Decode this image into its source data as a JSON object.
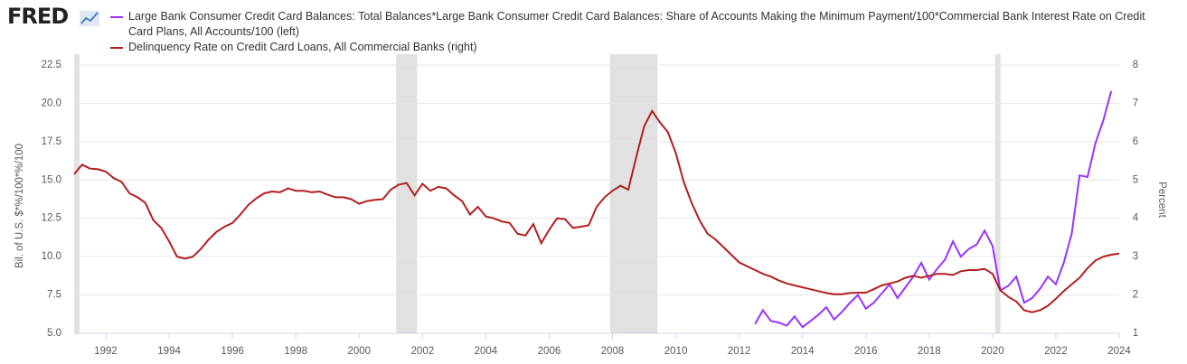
{
  "chart_data": {
    "type": "line",
    "logo": "FRED",
    "ylabel": "Bil. of U.S. $*%/100*%/100",
    "y2label": "Percent",
    "xlim": [
      1991,
      2024
    ],
    "xticks": [
      1992,
      1994,
      1996,
      1998,
      2000,
      2002,
      2004,
      2006,
      2008,
      2010,
      2012,
      2014,
      2016,
      2018,
      2020,
      2022,
      2024
    ],
    "ylim": [
      5,
      22.5
    ],
    "yticks": [
      {
        "value": 5,
        "label": "5.0"
      },
      7.5,
      {
        "value": 10,
        "label": "10.0"
      },
      12.5,
      {
        "value": 15,
        "label": "15.0"
      },
      17.5,
      {
        "value": 20,
        "label": "20.0"
      },
      22.5
    ],
    "y2lim": [
      1,
      8
    ],
    "y2ticks": [
      1,
      2,
      3,
      4,
      5,
      6,
      7,
      8
    ],
    "grid": true,
    "recession_color": "#e1e1e1",
    "recessions": [
      [
        1990.5,
        1991.17
      ],
      [
        2001.17,
        2001.83
      ],
      [
        2007.92,
        2009.42
      ],
      [
        2020.08,
        2020.25
      ]
    ],
    "x": [
      1991,
      1991.25,
      1991.5,
      1991.75,
      1992,
      1992.25,
      1992.5,
      1992.75,
      1993,
      1993.25,
      1993.5,
      1993.75,
      1994,
      1994.25,
      1994.5,
      1994.75,
      1995,
      1995.25,
      1995.5,
      1995.75,
      1996,
      1996.25,
      1996.5,
      1996.75,
      1997,
      1997.25,
      1997.5,
      1997.75,
      1998,
      1998.25,
      1998.5,
      1998.75,
      1999,
      1999.25,
      1999.5,
      1999.75,
      2000,
      2000.25,
      2000.5,
      2000.75,
      2001,
      2001.25,
      2001.5,
      2001.75,
      2002,
      2002.25,
      2002.5,
      2002.75,
      2003,
      2003.25,
      2003.5,
      2003.75,
      2004,
      2004.25,
      2004.5,
      2004.75,
      2005,
      2005.25,
      2005.5,
      2005.75,
      2006,
      2006.25,
      2006.5,
      2006.75,
      2007,
      2007.25,
      2007.5,
      2007.75,
      2008,
      2008.25,
      2008.5,
      2008.75,
      2009,
      2009.25,
      2009.5,
      2009.75,
      2010,
      2010.25,
      2010.5,
      2010.75,
      2011,
      2011.25,
      2011.5,
      2011.75,
      2012,
      2012.25,
      2012.5,
      2012.75,
      2013,
      2013.25,
      2013.5,
      2013.75,
      2014,
      2014.25,
      2014.5,
      2014.75,
      2015,
      2015.25,
      2015.5,
      2015.75,
      2016,
      2016.25,
      2016.5,
      2016.75,
      2017,
      2017.25,
      2017.5,
      2017.75,
      2018,
      2018.25,
      2018.5,
      2018.75,
      2019,
      2019.25,
      2019.5,
      2019.75,
      2020,
      2020.25,
      2020.5,
      2020.75,
      2021,
      2021.25,
      2021.5,
      2021.75,
      2022,
      2022.25,
      2022.5,
      2022.75,
      2023,
      2023.25,
      2023.5,
      2023.75,
      2024
    ],
    "series": [
      {
        "name": "Large Bank Consumer Credit Card Balances: Total Balances*Large Bank Consumer Credit Card Balances: Share of Accounts Making the Minimum Payment/100*Commercial Bank Interest Rate on Credit Card Plans, All Accounts/100 (left)",
        "color": "#9933ff",
        "axis": "y",
        "values": [
          null,
          null,
          null,
          null,
          null,
          null,
          null,
          null,
          null,
          null,
          null,
          null,
          null,
          null,
          null,
          null,
          null,
          null,
          null,
          null,
          null,
          null,
          null,
          null,
          null,
          null,
          null,
          null,
          null,
          null,
          null,
          null,
          null,
          null,
          null,
          null,
          null,
          null,
          null,
          null,
          null,
          null,
          null,
          null,
          null,
          null,
          null,
          null,
          null,
          null,
          null,
          null,
          null,
          null,
          null,
          null,
          null,
          null,
          null,
          null,
          null,
          null,
          null,
          null,
          null,
          null,
          null,
          null,
          null,
          null,
          null,
          null,
          null,
          null,
          null,
          null,
          null,
          null,
          null,
          null,
          null,
          null,
          null,
          null,
          null,
          null,
          5.6,
          6.5,
          5.8,
          5.7,
          5.5,
          6.1,
          5.4,
          5.8,
          6.2,
          6.7,
          5.9,
          6.4,
          7.0,
          7.5,
          6.6,
          7.0,
          7.6,
          8.2,
          7.3,
          8.0,
          8.7,
          9.6,
          8.5,
          9.2,
          9.8,
          11.0,
          10.0,
          10.5,
          10.8,
          11.7,
          10.7,
          7.8,
          8.1,
          8.7,
          7.0,
          7.3,
          7.9,
          8.7,
          8.2,
          9.6,
          11.5,
          15.3,
          15.2,
          17.4,
          18.9,
          20.8,
          null
        ]
      },
      {
        "name": "Delinquency Rate on Credit Card Loans, All Commercial Banks (right)",
        "color": "#b21f1f",
        "axis": "y2",
        "values": [
          5.15,
          5.4,
          5.3,
          5.28,
          5.22,
          5.05,
          4.95,
          4.65,
          4.55,
          4.4,
          3.95,
          3.75,
          3.4,
          3.0,
          2.95,
          3.0,
          3.2,
          3.45,
          3.65,
          3.78,
          3.88,
          4.1,
          4.35,
          4.52,
          4.65,
          4.7,
          4.68,
          4.78,
          4.72,
          4.72,
          4.68,
          4.7,
          4.62,
          4.55,
          4.55,
          4.5,
          4.38,
          4.45,
          4.48,
          4.5,
          4.75,
          4.88,
          4.92,
          4.6,
          4.9,
          4.72,
          4.82,
          4.78,
          4.6,
          4.45,
          4.1,
          4.3,
          4.05,
          4.0,
          3.92,
          3.88,
          3.6,
          3.55,
          3.85,
          3.35,
          3.7,
          4.0,
          3.98,
          3.75,
          3.78,
          3.82,
          4.3,
          4.55,
          4.72,
          4.85,
          4.75,
          5.6,
          6.4,
          6.8,
          6.5,
          6.25,
          5.7,
          4.95,
          4.4,
          3.95,
          3.6,
          3.45,
          3.25,
          3.05,
          2.85,
          2.75,
          2.65,
          2.55,
          2.48,
          2.38,
          2.3,
          2.25,
          2.2,
          2.15,
          2.1,
          2.05,
          2.02,
          2.02,
          2.05,
          2.06,
          2.06,
          2.15,
          2.25,
          2.3,
          2.35,
          2.45,
          2.5,
          2.45,
          2.5,
          2.55,
          2.55,
          2.52,
          2.62,
          2.65,
          2.65,
          2.68,
          2.55,
          2.12,
          1.95,
          1.83,
          1.6,
          1.55,
          1.6,
          1.72,
          1.9,
          2.1,
          2.28,
          2.45,
          2.7,
          2.9,
          3.0,
          3.05,
          3.08
        ]
      }
    ]
  }
}
